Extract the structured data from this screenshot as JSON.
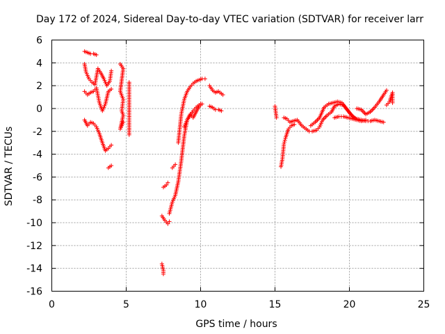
{
  "chart_data": {
    "type": "scatter",
    "title": "Day 172 of 2024, Sidereal Day-to-day VTEC variation (SDTVAR) for receiver larr",
    "xlabel": "GPS time / hours",
    "ylabel": "SDTVAR / TECUs",
    "xlim": [
      0,
      25
    ],
    "ylim": [
      -16,
      6
    ],
    "xticks": [
      0,
      5,
      10,
      15,
      20,
      25
    ],
    "yticks": [
      -16,
      -14,
      -12,
      -10,
      -8,
      -6,
      -4,
      -2,
      0,
      2,
      4,
      6
    ],
    "grid": true,
    "marker": "+",
    "color": "#ff0000",
    "series": [
      {
        "name": "SDTVAR",
        "segments": [
          [
            [
              2.2,
              5.0
            ],
            [
              2.4,
              4.9
            ],
            [
              2.6,
              4.8
            ],
            [
              2.8,
              4.8
            ],
            [
              3.0,
              4.7
            ]
          ],
          [
            [
              2.2,
              3.9
            ],
            [
              2.3,
              3.2
            ],
            [
              2.5,
              2.6
            ],
            [
              2.7,
              2.3
            ],
            [
              2.9,
              2.1
            ],
            [
              3.1,
              3.5
            ],
            [
              3.3,
              3.1
            ],
            [
              3.5,
              2.6
            ],
            [
              3.7,
              2.0
            ],
            [
              3.9,
              2.4
            ],
            [
              4.0,
              3.3
            ]
          ],
          [
            [
              2.2,
              1.5
            ],
            [
              2.4,
              1.2
            ],
            [
              2.6,
              1.4
            ],
            [
              2.8,
              1.5
            ],
            [
              3.0,
              1.8
            ],
            [
              3.2,
              0.5
            ],
            [
              3.4,
              -0.2
            ],
            [
              3.6,
              0.4
            ],
            [
              3.8,
              1.5
            ],
            [
              4.0,
              1.7
            ]
          ],
          [
            [
              2.2,
              -1.0
            ],
            [
              2.4,
              -1.5
            ],
            [
              2.6,
              -1.2
            ],
            [
              2.8,
              -1.3
            ],
            [
              3.0,
              -1.6
            ],
            [
              3.2,
              -2.2
            ],
            [
              3.4,
              -3.0
            ],
            [
              3.6,
              -3.7
            ],
            [
              3.8,
              -3.5
            ],
            [
              4.0,
              -3.2
            ]
          ],
          [
            [
              3.8,
              -5.2
            ],
            [
              4.0,
              -5.0
            ]
          ],
          [
            [
              4.6,
              3.9
            ],
            [
              4.8,
              3.5
            ],
            [
              4.6,
              1.5
            ],
            [
              4.8,
              0.8
            ],
            [
              4.7,
              -0.2
            ],
            [
              4.8,
              -0.6
            ],
            [
              4.6,
              -1.8
            ],
            [
              4.8,
              -1.2
            ]
          ],
          [
            [
              5.2,
              2.3
            ],
            [
              5.2,
              1.3
            ],
            [
              5.2,
              -0.7
            ],
            [
              5.2,
              -1.3
            ],
            [
              5.2,
              -2.3
            ]
          ],
          [
            [
              7.4,
              -13.6
            ],
            [
              7.5,
              -14.2
            ],
            [
              7.5,
              -14.5
            ]
          ],
          [
            [
              7.4,
              -9.4
            ],
            [
              7.6,
              -9.8
            ],
            [
              7.8,
              -10.1
            ],
            [
              7.9,
              -9.9
            ]
          ],
          [
            [
              7.5,
              -6.9
            ],
            [
              7.7,
              -6.7
            ],
            [
              7.8,
              -6.5
            ]
          ],
          [
            [
              8.1,
              -5.2
            ],
            [
              8.3,
              -4.9
            ]
          ],
          [
            [
              7.9,
              -9.2
            ],
            [
              8.1,
              -8.2
            ],
            [
              8.3,
              -7.6
            ],
            [
              8.5,
              -6.4
            ],
            [
              8.7,
              -4.6
            ],
            [
              8.9,
              -2.4
            ],
            [
              9.1,
              -1.0
            ],
            [
              9.3,
              -0.6
            ],
            [
              9.5,
              -0.2
            ],
            [
              9.7,
              0.1
            ],
            [
              9.9,
              0.3
            ],
            [
              10.0,
              0.4
            ]
          ],
          [
            [
              8.5,
              -3.0
            ],
            [
              8.7,
              -0.5
            ],
            [
              8.9,
              0.8
            ],
            [
              9.1,
              1.5
            ],
            [
              9.3,
              1.9
            ],
            [
              9.5,
              2.2
            ],
            [
              9.7,
              2.4
            ],
            [
              9.9,
              2.5
            ],
            [
              10.1,
              2.6
            ],
            [
              10.3,
              2.6
            ]
          ],
          [
            [
              8.9,
              -1.6
            ],
            [
              9.1,
              -1.0
            ],
            [
              9.3,
              -0.5
            ],
            [
              9.5,
              -0.8
            ],
            [
              9.7,
              -0.3
            ],
            [
              9.9,
              0.2
            ],
            [
              10.1,
              0.4
            ]
          ],
          [
            [
              10.6,
              2.0
            ],
            [
              10.8,
              1.6
            ],
            [
              11.0,
              1.4
            ],
            [
              11.2,
              1.5
            ],
            [
              11.4,
              1.3
            ],
            [
              11.5,
              1.2
            ]
          ],
          [
            [
              10.6,
              0.2
            ],
            [
              10.8,
              0.1
            ],
            [
              11.0,
              -0.1
            ],
            [
              11.2,
              -0.1
            ],
            [
              11.4,
              -0.2
            ]
          ],
          [
            [
              15.0,
              0.2
            ],
            [
              15.1,
              -0.8
            ]
          ],
          [
            [
              15.4,
              -5.1
            ],
            [
              15.5,
              -4.4
            ],
            [
              15.6,
              -3.1
            ],
            [
              15.7,
              -2.6
            ],
            [
              15.9,
              -1.8
            ],
            [
              16.1,
              -1.5
            ],
            [
              16.3,
              -1.4
            ]
          ],
          [
            [
              15.6,
              -0.8
            ],
            [
              15.8,
              -0.9
            ],
            [
              16.0,
              -1.2
            ],
            [
              16.2,
              -1.1
            ],
            [
              16.5,
              -1.0
            ],
            [
              16.8,
              -1.5
            ],
            [
              17.0,
              -1.7
            ],
            [
              17.3,
              -2.0
            ],
            [
              17.5,
              -2.0
            ],
            [
              17.8,
              -1.9
            ],
            [
              18.0,
              -1.6
            ],
            [
              18.2,
              -1.0
            ],
            [
              18.5,
              -0.6
            ],
            [
              18.8,
              -0.3
            ],
            [
              19.0,
              0.2
            ],
            [
              19.3,
              0.4
            ],
            [
              19.6,
              0.3
            ],
            [
              19.9,
              -0.2
            ],
            [
              20.2,
              -0.7
            ],
            [
              20.5,
              -0.9
            ],
            [
              20.8,
              -1.0
            ],
            [
              21.1,
              -1.1
            ],
            [
              21.4,
              -1.1
            ],
            [
              21.7,
              -1.0
            ],
            [
              22.0,
              -1.1
            ],
            [
              22.3,
              -1.2
            ]
          ],
          [
            [
              17.4,
              -1.5
            ],
            [
              17.7,
              -1.2
            ],
            [
              18.0,
              -0.8
            ],
            [
              18.3,
              0.1
            ],
            [
              18.6,
              0.4
            ],
            [
              18.9,
              0.5
            ],
            [
              19.2,
              0.6
            ],
            [
              19.5,
              0.5
            ],
            [
              19.8,
              0.0
            ],
            [
              20.1,
              -0.5
            ],
            [
              20.4,
              -0.9
            ]
          ],
          [
            [
              19.0,
              -0.8
            ],
            [
              19.3,
              -0.7
            ],
            [
              19.6,
              -0.7
            ],
            [
              19.9,
              -0.8
            ],
            [
              20.2,
              -0.9
            ],
            [
              20.5,
              -1.0
            ],
            [
              20.8,
              -1.1
            ],
            [
              21.1,
              -1.0
            ]
          ],
          [
            [
              20.5,
              0.0
            ],
            [
              20.8,
              -0.1
            ],
            [
              21.1,
              -0.5
            ],
            [
              21.4,
              -0.3
            ],
            [
              21.7,
              0.1
            ],
            [
              22.0,
              0.6
            ],
            [
              22.3,
              1.2
            ],
            [
              22.5,
              1.6
            ]
          ],
          [
            [
              22.5,
              0.3
            ],
            [
              22.7,
              0.6
            ],
            [
              22.9,
              1.4
            ],
            [
              22.9,
              0.5
            ]
          ]
        ]
      }
    ]
  }
}
